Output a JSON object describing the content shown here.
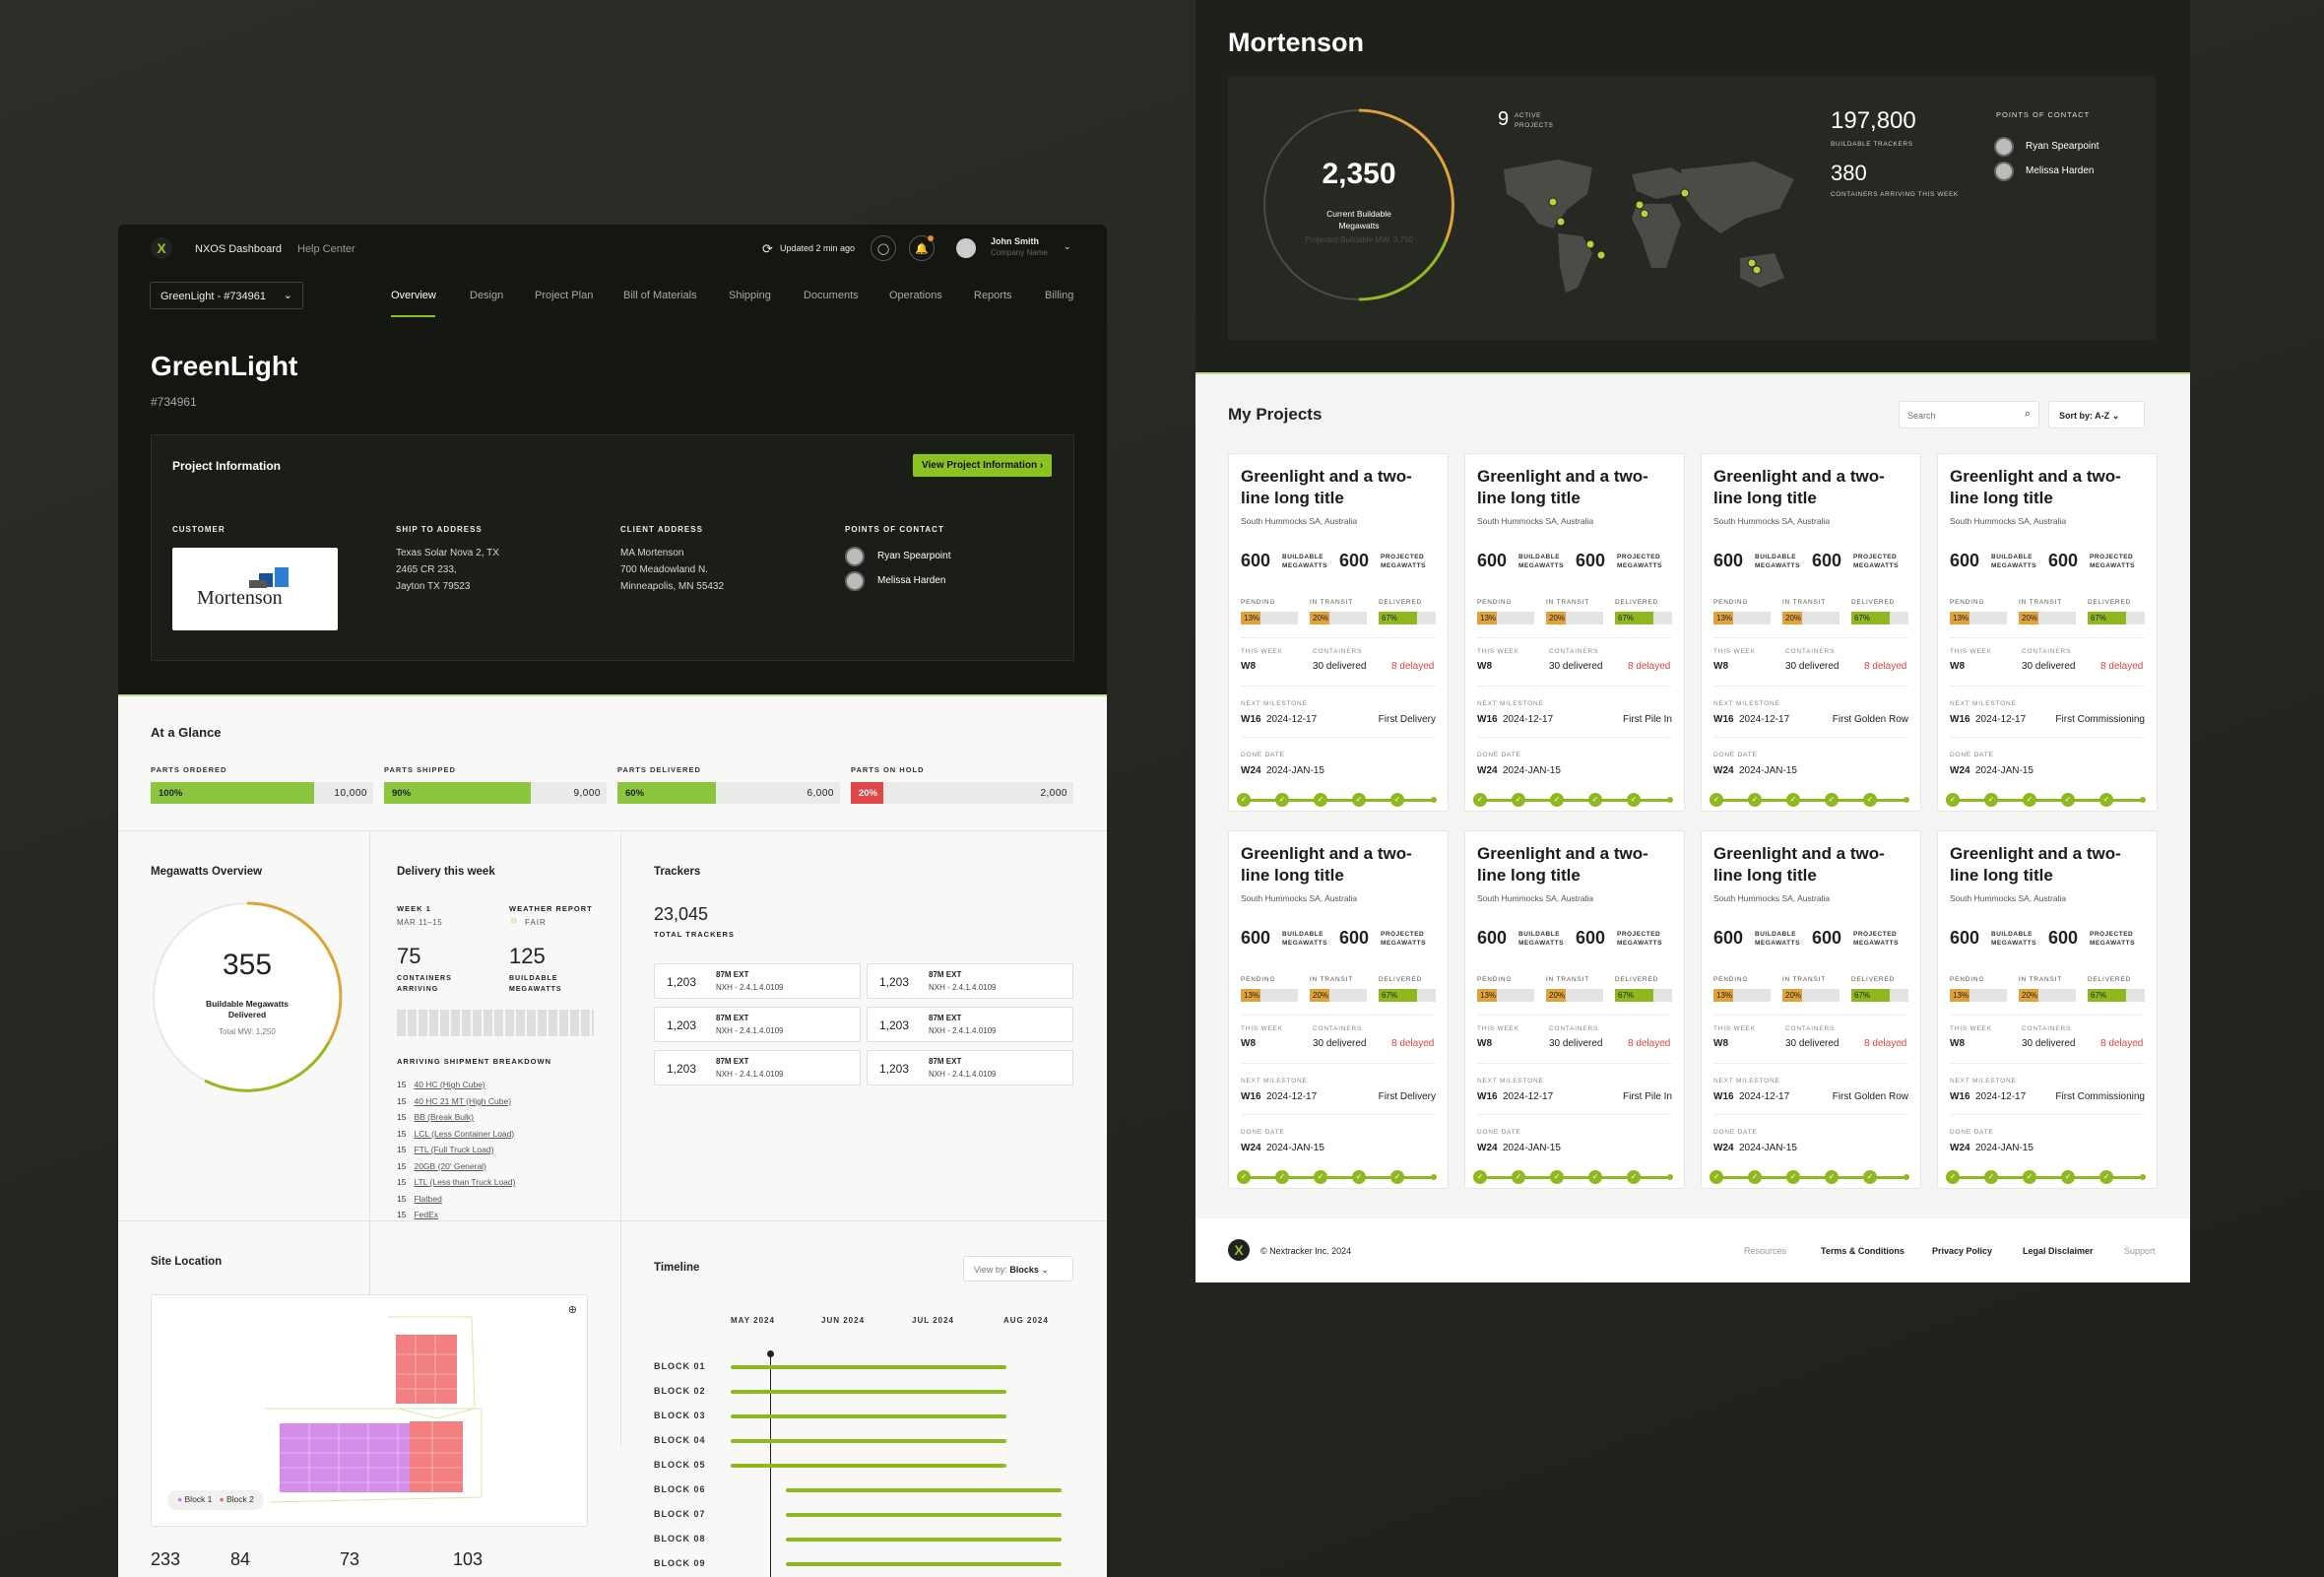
{
  "dashboard": {
    "nav": {
      "app_name": "NXOS Dashboard",
      "help": "Help Center",
      "updated": "Updated 2 min ago",
      "user_name": "John Smith",
      "company": "Company Name"
    },
    "project_selector": "GreenLight - #734961",
    "tabs": [
      "Overview",
      "Design",
      "Project Plan",
      "Bill of Materials",
      "Shipping",
      "Documents",
      "Operations",
      "Reports",
      "Billing"
    ],
    "project_title": "GreenLight",
    "project_number": "#734961",
    "info_title": "Project Information",
    "view_button": "View Project Information",
    "customer_label": "CUSTOMER",
    "customer_logo": "Mortenson",
    "ship_label": "SHIP TO ADDRESS",
    "ship_lines": [
      "Texas Solar Nova 2, TX",
      "2465 CR 233,",
      "Jayton TX 79523"
    ],
    "client_label": "CLIENT ADDRESS",
    "client_lines": [
      "MA Mortenson",
      "700 Meadowland N.",
      "Minneapolis, MN 55432"
    ],
    "poc_label": "POINTS OF CONTACT",
    "contacts": [
      "Ryan Spearpoint",
      "Melissa Harden"
    ],
    "glance_title": "At a Glance",
    "glance": [
      {
        "label": "PARTS ORDERED",
        "pct_text": "100%",
        "pct": 100,
        "total": "10,000",
        "color": "#8cc63e"
      },
      {
        "label": "PARTS SHIPPED",
        "pct_text": "90%",
        "pct": 90,
        "total": "9,000",
        "color": "#8cc63e"
      },
      {
        "label": "PARTS DELIVERED",
        "pct_text": "60%",
        "pct": 60,
        "total": "6,000",
        "color": "#8cc63e"
      },
      {
        "label": "PARTS ON HOLD",
        "pct_text": "20%",
        "pct": 20,
        "total": "2,000",
        "color": "#e04848"
      }
    ],
    "mw_title": "Megawatts Overview",
    "mw_value": "355",
    "mw_label": "Buildable Megawatts Delivered",
    "mw_total": "Total MW: 1,250",
    "delivery_title": "Delivery this week",
    "week_label": "WEEK 1",
    "week_dates": "MAR 11–15",
    "weather_label": "WEATHER REPORT",
    "weather_value": "FAIR",
    "containers_value": "75",
    "containers_label": "CONTAINERS ARRIVING",
    "bmw_value": "125",
    "bmw_label": "BUILDABLE MEGAWATTS",
    "breakdown_title": "ARRIVING SHIPMENT BREAKDOWN",
    "breakdown": [
      {
        "n": "15",
        "t": "40 HC (High Cube)"
      },
      {
        "n": "15",
        "t": "40 HC 21 MT (High Cube)"
      },
      {
        "n": "15",
        "t": "BB (Break Bulk)"
      },
      {
        "n": "15",
        "t": "LCL (Less Container Load)"
      },
      {
        "n": "15",
        "t": "FTL (Full Truck Load)"
      },
      {
        "n": "15",
        "t": "20GB (20' General)"
      },
      {
        "n": "15",
        "t": "LTL (Less than Truck Load)"
      },
      {
        "n": "15",
        "t": "Flatbed"
      },
      {
        "n": "15",
        "t": "FedEx"
      }
    ],
    "trackers_title": "Trackers",
    "trackers_total": "23,045",
    "trackers_total_label": "TOTAL TRACKERS",
    "trackers": [
      {
        "n": "1,203",
        "t1": "87M EXT",
        "t2": "NXH - 2.4.1.4.0109"
      },
      {
        "n": "1,203",
        "t1": "87M EXT",
        "t2": "NXH - 2.4.1.4.0109"
      },
      {
        "n": "1,203",
        "t1": "87M EXT",
        "t2": "NXH - 2.4.1.4.0109"
      },
      {
        "n": "1,203",
        "t1": "87M EXT",
        "t2": "NXH - 2.4.1.4.0109"
      },
      {
        "n": "1,203",
        "t1": "87M EXT",
        "t2": "NXH - 2.4.1.4.0109"
      },
      {
        "n": "1,203",
        "t1": "87M EXT",
        "t2": "NXH - 2.4.1.4.0109"
      }
    ],
    "site_title": "Site Location",
    "site_legend": [
      "Block 1",
      "Block 2"
    ],
    "site_stats": [
      "233",
      "84",
      "73",
      "103"
    ],
    "timeline_title": "Timeline",
    "timeline_view": "View by:",
    "timeline_view_value": "Blocks",
    "timeline_months": [
      "MAY 2024",
      "JUN 2024",
      "JUL 2024",
      "AUG 2024"
    ],
    "timeline_blocks": [
      "BLOCK 01",
      "BLOCK 02",
      "BLOCK 03",
      "BLOCK 04",
      "BLOCK 05",
      "BLOCK 06",
      "BLOCK 07",
      "BLOCK 08",
      "BLOCK 09"
    ]
  },
  "portfolio": {
    "title": "Mortenson",
    "mw_value": "2,350",
    "mw_label": "Current Buildable Megawatts",
    "mw_projected": "Projected Buildable MW: 3,750",
    "active_value": "9",
    "active_label": "ACTIVE PROJECTS",
    "trackers_value": "197,800",
    "trackers_label": "BUILDABLE TRACKERS",
    "containers_value": "380",
    "containers_label": "CONTAINERS ARRIVING THIS WEEK",
    "poc_label": "POINTS OF CONTACT",
    "contacts": [
      "Ryan Spearpoint",
      "Melissa Harden"
    ],
    "projects_title": "My Projects",
    "search_placeholder": "Search",
    "sort_label": "Sort by: A-Z",
    "footer_copy": "© Nextracker Inc. 2024",
    "footer_links": [
      "Resources",
      "Terms & Conditions",
      "Privacy Policy",
      "Legal Disclaimer",
      "Support"
    ],
    "cards": [
      {
        "title": "Greenlight and a two-line long title",
        "loc": "South Hummocks SA, Australia",
        "bmw": "600",
        "pmw": "600",
        "milestone": "First Delivery"
      },
      {
        "title": "Greenlight and a two-line long title",
        "loc": "South Hummocks SA, Australia",
        "bmw": "600",
        "pmw": "600",
        "milestone": "First Pile In"
      },
      {
        "title": "Greenlight and a two-line long title",
        "loc": "South Hummocks SA, Australia",
        "bmw": "600",
        "pmw": "600",
        "milestone": "First Golden Row"
      },
      {
        "title": "Greenlight and a two-line long title",
        "loc": "South Hummocks SA, Australia",
        "bmw": "600",
        "pmw": "600",
        "milestone": "First Commissioning"
      },
      {
        "title": "Greenlight and a two-line long title",
        "loc": "South Hummocks SA, Australia",
        "bmw": "600",
        "pmw": "600",
        "milestone": "First Delivery"
      },
      {
        "title": "Greenlight and a two-line long title",
        "loc": "South Hummocks SA, Australia",
        "bmw": "600",
        "pmw": "600",
        "milestone": "First Pile In"
      },
      {
        "title": "Greenlight and a two-line long title",
        "loc": "South Hummocks SA, Australia",
        "bmw": "600",
        "pmw": "600",
        "milestone": "First Golden Row"
      },
      {
        "title": "Greenlight and a two-line long title",
        "loc": "South Hummocks SA, Australia",
        "bmw": "600",
        "pmw": "600",
        "milestone": "First Commissioning"
      }
    ],
    "card_common": {
      "bmw_label": "BUILDABLE MEGAWATTS",
      "pmw_label": "PROJECTED MEGAWATTS",
      "pending": "PENDING",
      "pending_val": "13%",
      "transit": "IN TRANSIT",
      "transit_val": "20%",
      "delivered": "DELIVERED",
      "delivered_val": "67%",
      "week_label": "THIS WEEK",
      "week_val": "W8",
      "containers_label": "CONTAINERS",
      "containers_val": "30 delivered",
      "delayed": "8 delayed",
      "next_label": "NEXT MILESTONE",
      "next_week": "W16",
      "next_date": "2024-12-17",
      "done_label": "DONE DATE",
      "done_week": "W24",
      "done_date": "2024-JAN-15"
    }
  }
}
